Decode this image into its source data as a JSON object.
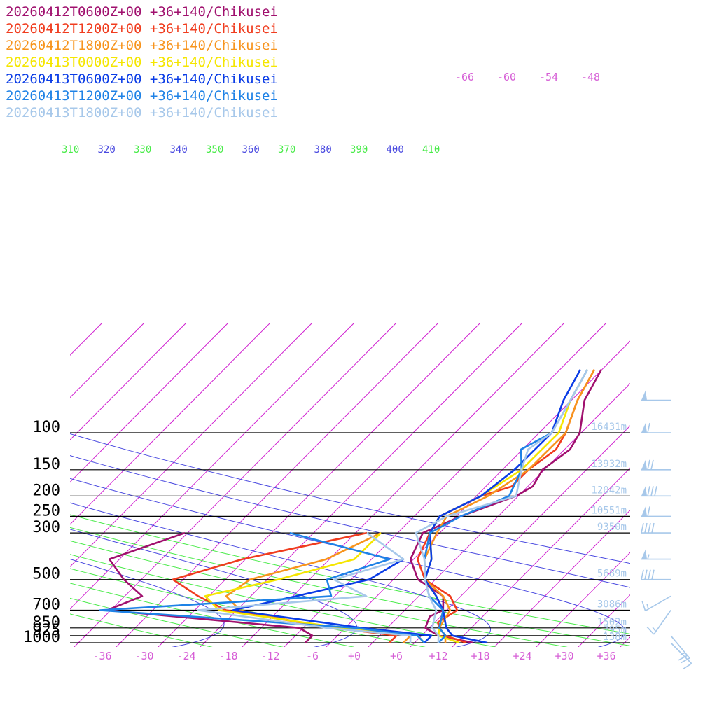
{
  "chart_data": {
    "type": "line",
    "title": "",
    "xlabel": "",
    "ylabel": "",
    "pressure_levels": [
      {
        "p": 100,
        "label": "100",
        "height": "16431m"
      },
      {
        "p": 150,
        "label": "150",
        "height": "13932m"
      },
      {
        "p": 200,
        "label": "200",
        "height": "12042m"
      },
      {
        "p": 250,
        "label": "250",
        "height": "10551m"
      },
      {
        "p": 300,
        "label": "300",
        "height": "9350m"
      },
      {
        "p": 500,
        "label": "500",
        "height": "5689m"
      },
      {
        "p": 700,
        "label": "700",
        "height": "3086m"
      },
      {
        "p": 850,
        "label": "850",
        "height": "1502m"
      },
      {
        "p": 925,
        "label": "925",
        "height": "795m"
      },
      {
        "p": 1000,
        "label": "1000",
        "height": "138m"
      }
    ],
    "x_ticks": [
      "-36",
      "-30",
      "-24",
      "-18",
      "-12",
      "-6",
      "+0",
      "+6",
      "+12",
      "+18",
      "+24",
      "+30",
      "+36"
    ],
    "theta_labels": [
      "310",
      "320",
      "330",
      "340",
      "350",
      "360",
      "370",
      "380",
      "390",
      "400",
      "410"
    ],
    "mix_labels": [
      "-66",
      "-60",
      "-54",
      "-48"
    ],
    "series": [
      {
        "name": "20260412T0600Z+00 +36+140/Chikusei",
        "color": "#a0106e",
        "temp": [
          [
            -4,
            50
          ],
          [
            -2,
            70
          ],
          [
            2,
            100
          ],
          [
            3,
            120
          ],
          [
            2,
            150
          ],
          [
            3,
            180
          ],
          [
            2,
            200
          ],
          [
            -3,
            250
          ],
          [
            -6,
            300
          ],
          [
            -4,
            400
          ],
          [
            0,
            500
          ],
          [
            6,
            600
          ],
          [
            8,
            700
          ],
          [
            7,
            750
          ],
          [
            8,
            850
          ],
          [
            11,
            925
          ],
          [
            17,
            1000
          ]
        ],
        "dew": [
          [
            -40,
            300
          ],
          [
            -47,
            400
          ],
          [
            -42,
            500
          ],
          [
            -37,
            600
          ],
          [
            -40,
            700
          ],
          [
            -10,
            850
          ],
          [
            -7,
            925
          ],
          [
            -7,
            1000
          ]
        ]
      },
      {
        "name": "20260412T1200Z+00 +36+140/Chikusei",
        "color": "#f03c1e",
        "temp": [
          [
            -5,
            50
          ],
          [
            -3,
            70
          ],
          [
            0,
            100
          ],
          [
            1,
            120
          ],
          [
            0,
            150
          ],
          [
            0,
            180
          ],
          [
            -3,
            200
          ],
          [
            -6,
            250
          ],
          [
            -5,
            300
          ],
          [
            -3,
            400
          ],
          [
            1,
            500
          ],
          [
            7,
            600
          ],
          [
            10,
            700
          ],
          [
            9,
            800
          ],
          [
            10,
            850
          ],
          [
            12,
            925
          ],
          [
            16,
            1000
          ]
        ],
        "dew": [
          [
            -14,
            300
          ],
          [
            -28,
            400
          ],
          [
            -35,
            500
          ],
          [
            -29,
            600
          ],
          [
            -23,
            700
          ],
          [
            -5,
            850
          ],
          [
            5,
            925
          ],
          [
            5,
            1000
          ]
        ]
      },
      {
        "name": "20260412T1800Z+00 +36+140/Chikusei",
        "color": "#f7941d",
        "temp": [
          [
            -5,
            50
          ],
          [
            -3,
            70
          ],
          [
            0,
            100
          ],
          [
            0,
            150
          ],
          [
            -2,
            200
          ],
          [
            -5,
            250
          ],
          [
            -4,
            300
          ],
          [
            -2,
            400
          ],
          [
            1,
            500
          ],
          [
            6,
            600
          ],
          [
            9,
            700
          ],
          [
            10,
            850
          ],
          [
            12,
            925
          ],
          [
            13,
            1000
          ]
        ],
        "dew": [
          [
            -12,
            300
          ],
          [
            -16,
            400
          ],
          [
            -24,
            500
          ],
          [
            -25,
            600
          ],
          [
            -21,
            700
          ],
          [
            -6,
            850
          ],
          [
            7,
            925
          ],
          [
            7,
            1000
          ]
        ]
      },
      {
        "name": "20260413T0000Z+00 +36+140/Chikusei",
        "color": "#f5e600",
        "temp": [
          [
            -6,
            50
          ],
          [
            -4,
            70
          ],
          [
            -1,
            100
          ],
          [
            -1,
            150
          ],
          [
            -3,
            200
          ],
          [
            -6,
            250
          ],
          [
            -5,
            300
          ],
          [
            -1,
            400
          ],
          [
            1,
            500
          ],
          [
            5,
            600
          ],
          [
            8,
            700
          ],
          [
            10,
            850
          ],
          [
            11,
            925
          ],
          [
            15,
            1000
          ]
        ],
        "dew": [
          [
            -12,
            300
          ],
          [
            -12,
            400
          ],
          [
            -20,
            500
          ],
          [
            -28,
            600
          ],
          [
            -24,
            700
          ],
          [
            -4,
            850
          ],
          [
            8,
            925
          ],
          [
            10,
            1000
          ]
        ]
      },
      {
        "name": "20260413T0600Z+00 +36+140/Chikusei",
        "color": "#0a3ce6",
        "temp": [
          [
            -7,
            50
          ],
          [
            -5,
            70
          ],
          [
            -2,
            100
          ],
          [
            -2,
            150
          ],
          [
            -3,
            200
          ],
          [
            -6,
            250
          ],
          [
            -5,
            300
          ],
          [
            -1,
            400
          ],
          [
            1,
            500
          ],
          [
            5,
            600
          ],
          [
            8,
            700
          ],
          [
            11,
            850
          ],
          [
            13,
            925
          ],
          [
            19,
            1000
          ]
        ],
        "dew": [
          [
            -5,
            400
          ],
          [
            -7,
            500
          ],
          [
            -15,
            600
          ],
          [
            -22,
            700
          ],
          [
            -1,
            850
          ],
          [
            10,
            925
          ],
          [
            10,
            1000
          ]
        ]
      },
      {
        "name": "20260413T1200Z+00 +36+140/Chikusei",
        "color": "#1e82e6",
        "temp": [
          [
            -6,
            50
          ],
          [
            -4,
            70
          ],
          [
            -2,
            100
          ],
          [
            -4,
            120
          ],
          [
            -1,
            150
          ],
          [
            1,
            200
          ],
          [
            -3,
            250
          ],
          [
            -5,
            300
          ],
          [
            -2,
            400
          ],
          [
            1,
            500
          ],
          [
            4,
            600
          ],
          [
            8,
            700
          ],
          [
            10,
            850
          ],
          [
            12,
            925
          ],
          [
            12,
            1000
          ]
        ],
        "dew": [
          [
            -25,
            300
          ],
          [
            -7,
            400
          ],
          [
            -13,
            500
          ],
          [
            -10,
            600
          ],
          [
            -41,
            700
          ],
          [
            -2,
            850
          ],
          [
            8,
            925
          ],
          [
            10,
            1000
          ]
        ]
      },
      {
        "name": "20260413T1800Z+00 +36+140/Chikusei",
        "color": "#a7c8ea",
        "temp": [
          [
            -6,
            50
          ],
          [
            -4,
            70
          ],
          [
            -2,
            100
          ],
          [
            -3,
            120
          ],
          [
            -1,
            150
          ],
          [
            2,
            200
          ],
          [
            -5,
            250
          ],
          [
            -7,
            300
          ],
          [
            -2,
            400
          ],
          [
            1,
            500
          ],
          [
            4,
            600
          ],
          [
            7,
            700
          ],
          [
            9,
            850
          ],
          [
            11,
            925
          ],
          [
            12,
            1000
          ]
        ],
        "dew": [
          [
            -14,
            300
          ],
          [
            -5,
            400
          ],
          [
            -12,
            500
          ],
          [
            -5,
            600
          ],
          [
            -27,
            700
          ],
          [
            -6,
            850
          ],
          [
            7,
            925
          ],
          [
            8,
            1000
          ]
        ]
      }
    ],
    "wind_barbs": [
      {
        "p": 70,
        "dir": 270,
        "speed": 50
      },
      {
        "p": 100,
        "dir": 270,
        "speed": 60
      },
      {
        "p": 150,
        "dir": 270,
        "speed": 70
      },
      {
        "p": 200,
        "dir": 270,
        "speed": 80
      },
      {
        "p": 250,
        "dir": 270,
        "speed": 60
      },
      {
        "p": 300,
        "dir": 270,
        "speed": 40
      },
      {
        "p": 400,
        "dir": 270,
        "speed": 55
      },
      {
        "p": 500,
        "dir": 270,
        "speed": 40
      },
      {
        "p": 600,
        "dir": 240,
        "speed": 15
      },
      {
        "p": 700,
        "dir": 215,
        "speed": 15
      },
      {
        "p": 925,
        "dir": 140,
        "speed": 25
      },
      {
        "p": 1000,
        "dir": 135,
        "speed": 10
      }
    ],
    "grid": true
  }
}
